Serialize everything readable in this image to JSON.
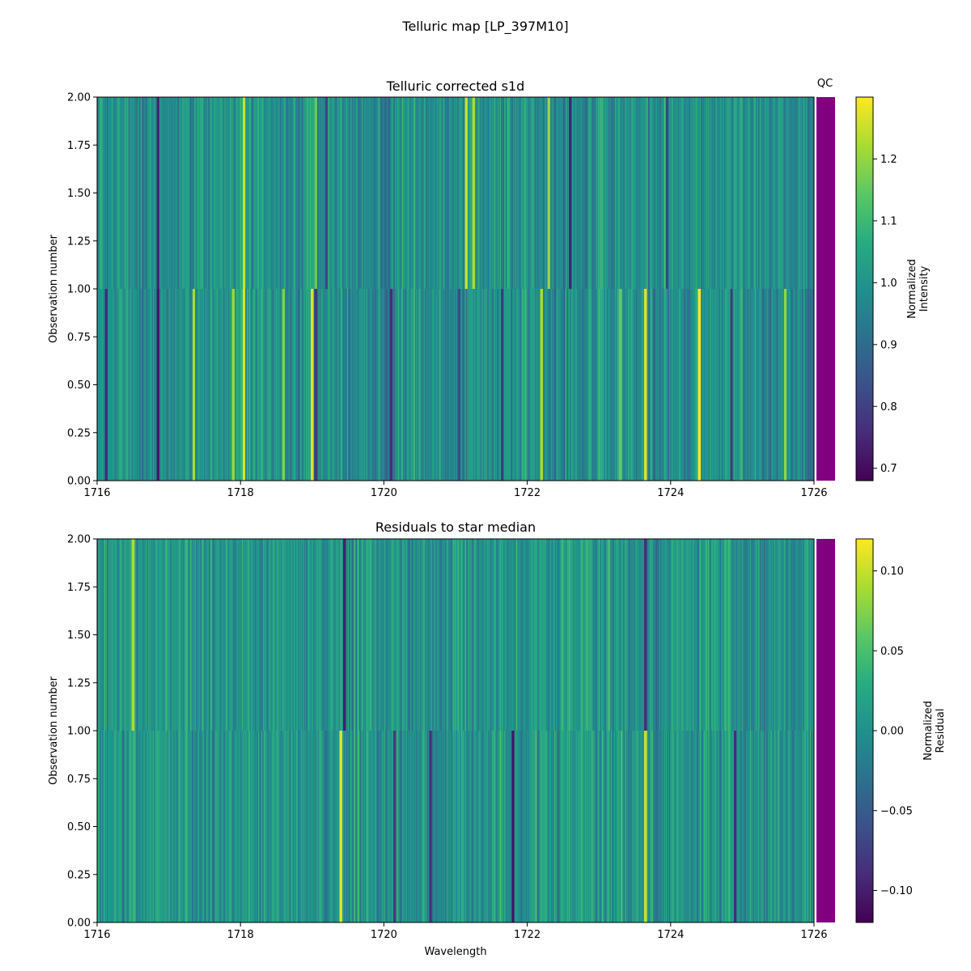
{
  "figure_title": "Telluric map [LP_397M10]",
  "chart_data": [
    {
      "type": "heatmap",
      "title": "Telluric corrected s1d",
      "xlabel": "",
      "ylabel": "Observation number",
      "xlim": [
        1716,
        1726
      ],
      "ylim": [
        0.0,
        2.0
      ],
      "x_ticks": [
        "1716",
        "1718",
        "1720",
        "1722",
        "1724",
        "1726"
      ],
      "y_ticks": [
        "0.00",
        "0.25",
        "0.50",
        "0.75",
        "1.00",
        "1.25",
        "1.50",
        "1.75",
        "2.00"
      ],
      "rows": 2,
      "colormap": "viridis",
      "colorbar": {
        "label": "Normalized\nIntensity",
        "range": [
          0.68,
          1.3
        ],
        "ticks": [
          "0.7",
          "0.8",
          "0.9",
          "1.0",
          "1.1",
          "1.2"
        ]
      },
      "qc_label": "QC",
      "qc_color": "#800080",
      "lines": [
        {
          "w": 1716.13,
          "v": 0.75,
          "row": 0
        },
        {
          "w": 1716.85,
          "v": 0.72,
          "row": 0
        },
        {
          "w": 1716.85,
          "v": 0.74,
          "row": 1
        },
        {
          "w": 1717.35,
          "v": 1.22,
          "row": 0
        },
        {
          "w": 1717.9,
          "v": 1.2,
          "row": 0
        },
        {
          "w": 1718.05,
          "v": 1.27,
          "row": 0
        },
        {
          "w": 1718.05,
          "v": 1.25,
          "row": 1
        },
        {
          "w": 1718.6,
          "v": 1.18,
          "row": 0
        },
        {
          "w": 1719.0,
          "v": 1.27,
          "row": 0
        },
        {
          "w": 1719.05,
          "v": 1.15,
          "row": 1
        },
        {
          "w": 1719.05,
          "v": 0.78,
          "row": 0
        },
        {
          "w": 1719.2,
          "v": 0.8,
          "row": 1
        },
        {
          "w": 1720.1,
          "v": 0.76,
          "row": 0
        },
        {
          "w": 1721.05,
          "v": 0.82,
          "row": 0
        },
        {
          "w": 1721.15,
          "v": 1.25,
          "row": 1
        },
        {
          "w": 1721.25,
          "v": 1.22,
          "row": 1
        },
        {
          "w": 1721.65,
          "v": 0.78,
          "row": 0
        },
        {
          "w": 1722.2,
          "v": 1.22,
          "row": 0
        },
        {
          "w": 1722.3,
          "v": 1.2,
          "row": 1
        },
        {
          "w": 1722.6,
          "v": 0.74,
          "row": 1
        },
        {
          "w": 1723.3,
          "v": 1.15,
          "row": 0
        },
        {
          "w": 1723.65,
          "v": 1.27,
          "row": 0
        },
        {
          "w": 1723.95,
          "v": 0.8,
          "row": 1
        },
        {
          "w": 1724.4,
          "v": 1.3,
          "row": 0
        },
        {
          "w": 1724.85,
          "v": 0.78,
          "row": 0
        },
        {
          "w": 1725.6,
          "v": 1.2,
          "row": 0
        }
      ]
    },
    {
      "type": "heatmap",
      "title": "Residuals to star median",
      "xlabel": "Wavelength",
      "ylabel": "Observation number",
      "xlim": [
        1716,
        1726
      ],
      "ylim": [
        0.0,
        2.0
      ],
      "x_ticks": [
        "1716",
        "1718",
        "1720",
        "1722",
        "1724",
        "1726"
      ],
      "y_ticks": [
        "0.00",
        "0.25",
        "0.50",
        "0.75",
        "1.00",
        "1.25",
        "1.50",
        "1.75",
        "2.00"
      ],
      "rows": 2,
      "colormap": "viridis",
      "colorbar": {
        "label": "Normalized\nResidual",
        "range": [
          -0.12,
          0.12
        ],
        "ticks": [
          "−0.10",
          "−0.05",
          "0.00",
          "0.05",
          "0.10"
        ]
      },
      "qc_color": "#800080",
      "lines": [
        {
          "w": 1716.5,
          "v": 0.09,
          "row": 1
        },
        {
          "w": 1719.4,
          "v": 0.11,
          "row": 0
        },
        {
          "w": 1719.45,
          "v": -0.1,
          "row": 1
        },
        {
          "w": 1720.15,
          "v": -0.08,
          "row": 0
        },
        {
          "w": 1720.65,
          "v": -0.09,
          "row": 0
        },
        {
          "w": 1721.8,
          "v": -0.11,
          "row": 0
        },
        {
          "w": 1723.65,
          "v": 0.1,
          "row": 0
        },
        {
          "w": 1723.65,
          "v": -0.09,
          "row": 1
        },
        {
          "w": 1724.9,
          "v": -0.09,
          "row": 0
        }
      ]
    }
  ]
}
